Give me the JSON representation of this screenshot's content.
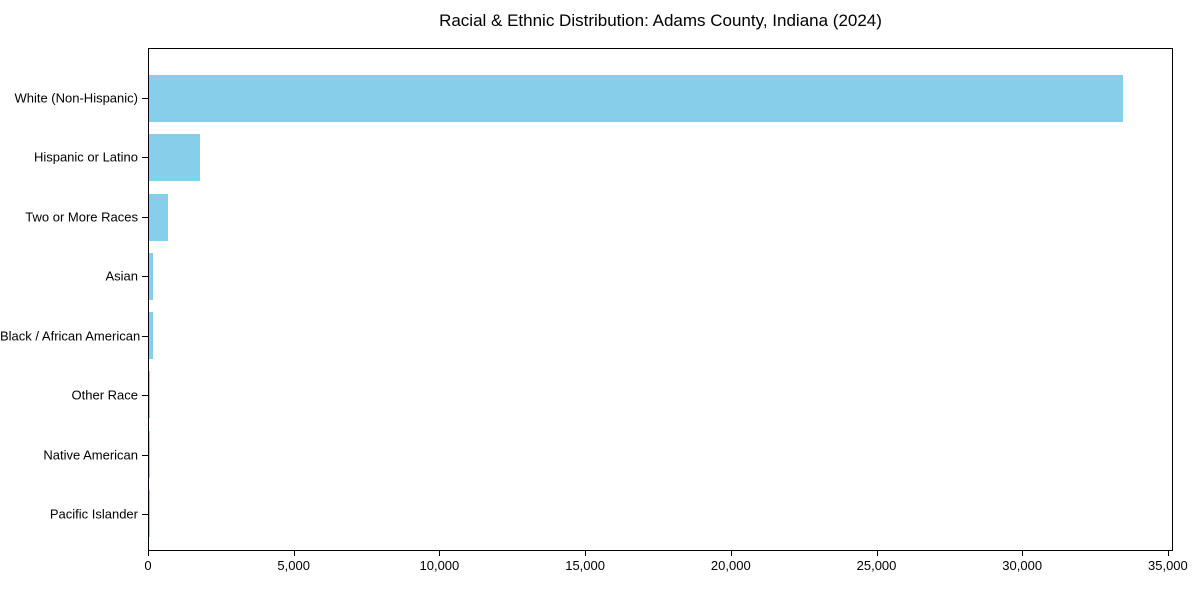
{
  "chart_data": {
    "type": "bar",
    "orientation": "horizontal",
    "title": "Racial & Ethnic Distribution: Adams County, Indiana (2024)",
    "categories": [
      "White (Non-Hispanic)",
      "Hispanic or Latino",
      "Two or More Races",
      "Asian",
      "Black / African American",
      "Other Race",
      "Native American",
      "Pacific Islander"
    ],
    "values": [
      33500,
      1750,
      650,
      140,
      130,
      25,
      15,
      5
    ],
    "xlabel": "",
    "ylabel": "",
    "xlim": [
      0,
      35175
    ],
    "x_ticks": [
      0,
      5000,
      10000,
      15000,
      20000,
      25000,
      30000,
      35000
    ],
    "x_tick_labels": [
      "0",
      "5,000",
      "10,000",
      "15,000",
      "20,000",
      "25,000",
      "30,000",
      "35,000"
    ],
    "grid": false,
    "legend": null,
    "colors": {
      "bar": "#87CEEB",
      "axis": "#000000",
      "text": "#000000",
      "background": "#ffffff"
    }
  }
}
